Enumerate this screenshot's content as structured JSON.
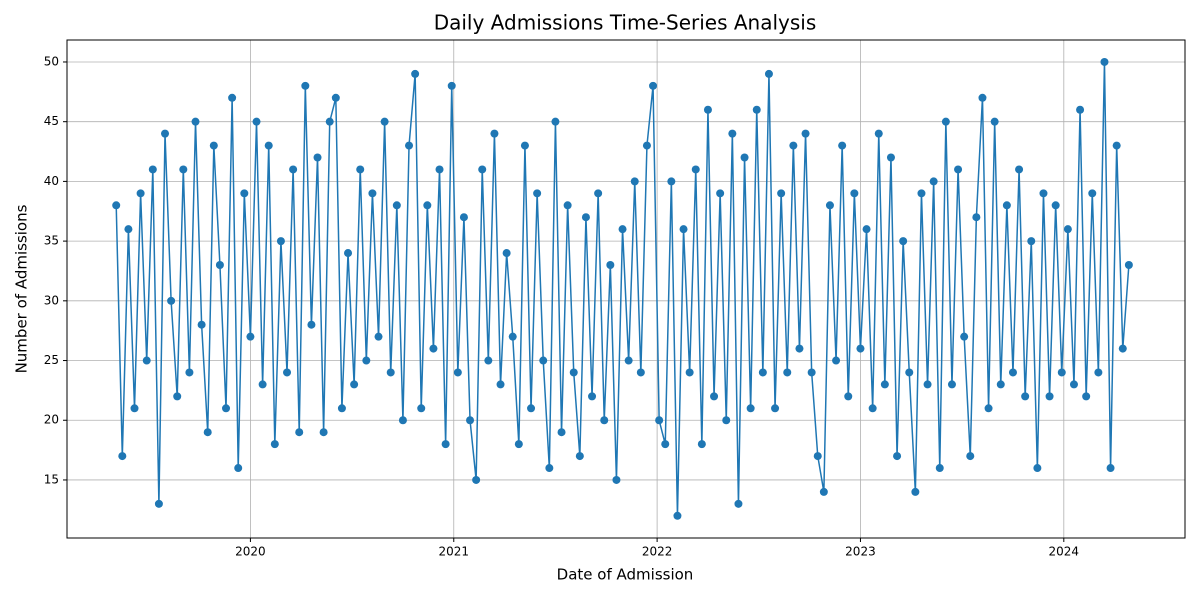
{
  "chart_data": {
    "type": "line",
    "title": "Daily Admissions Time-Series Analysis",
    "x_label": "Date of Admission",
    "y_label": "Number of Admissions",
    "x": [
      2019.34,
      2019.37,
      2019.4,
      2019.43,
      2019.46,
      2019.49,
      2019.52,
      2019.55,
      2019.58,
      2019.61,
      2019.64,
      2019.67,
      2019.7,
      2019.73,
      2019.76,
      2019.79,
      2019.82,
      2019.85,
      2019.88,
      2019.91,
      2019.94,
      2019.97,
      2020.0,
      2020.03,
      2020.06,
      2020.09,
      2020.12,
      2020.15,
      2020.18,
      2020.21,
      2020.24,
      2020.27,
      2020.3,
      2020.33,
      2020.36,
      2020.39,
      2020.42,
      2020.45,
      2020.48,
      2020.51,
      2020.54,
      2020.57,
      2020.6,
      2020.63,
      2020.66,
      2020.69,
      2020.72,
      2020.75,
      2020.78,
      2020.81,
      2020.84,
      2020.87,
      2020.9,
      2020.93,
      2020.96,
      2020.99,
      2021.02,
      2021.05,
      2021.08,
      2021.11,
      2021.14,
      2021.17,
      2021.2,
      2021.23,
      2021.26,
      2021.29,
      2021.32,
      2021.35,
      2021.38,
      2021.41,
      2021.44,
      2021.47,
      2021.5,
      2021.53,
      2021.56,
      2021.59,
      2021.62,
      2021.65,
      2021.68,
      2021.71,
      2021.74,
      2021.77,
      2021.8,
      2021.83,
      2021.86,
      2021.89,
      2021.92,
      2021.95,
      2021.98,
      2022.01,
      2022.04,
      2022.07,
      2022.1,
      2022.13,
      2022.16,
      2022.19,
      2022.22,
      2022.25,
      2022.28,
      2022.31,
      2022.34,
      2022.37,
      2022.4,
      2022.43,
      2022.46,
      2022.49,
      2022.52,
      2022.55,
      2022.58,
      2022.61,
      2022.64,
      2022.67,
      2022.7,
      2022.73,
      2022.76,
      2022.79,
      2022.82,
      2022.85,
      2022.88,
      2022.91,
      2022.94,
      2022.97,
      2023.0,
      2023.03,
      2023.06,
      2023.09,
      2023.12,
      2023.15,
      2023.18,
      2023.21,
      2023.24,
      2023.27,
      2023.3,
      2023.33,
      2023.36,
      2023.39,
      2023.42,
      2023.45,
      2023.48,
      2023.51,
      2023.54,
      2023.57,
      2023.6,
      2023.63,
      2023.66,
      2023.69,
      2023.72,
      2023.75,
      2023.78,
      2023.81,
      2023.84,
      2023.87,
      2023.9,
      2023.93,
      2023.96,
      2023.99,
      2024.02,
      2024.05,
      2024.08,
      2024.11,
      2024.14,
      2024.17,
      2024.2,
      2024.23,
      2024.26,
      2024.29,
      2024.32
    ],
    "series": [
      {
        "name": "Admissions",
        "color": "#1f77b4",
        "values": [
          38,
          17,
          36,
          21,
          39,
          25,
          41,
          13,
          44,
          30,
          22,
          41,
          24,
          45,
          28,
          19,
          43,
          33,
          21,
          47,
          16,
          39,
          27,
          45,
          23,
          43,
          18,
          35,
          24,
          41,
          19,
          48,
          28,
          42,
          19,
          45,
          47,
          21,
          34,
          23,
          41,
          25,
          39,
          27,
          45,
          24,
          38,
          20,
          43,
          49,
          21,
          38,
          26,
          41,
          18,
          48,
          24,
          37,
          20,
          15,
          41,
          25,
          44,
          23,
          34,
          27,
          18,
          43,
          21,
          39,
          25,
          16,
          45,
          19,
          38,
          24,
          17,
          37,
          22,
          39,
          20,
          33,
          15,
          36,
          25,
          40,
          24,
          43,
          48,
          20,
          18,
          40,
          12,
          36,
          24,
          41,
          18,
          46,
          22,
          39,
          20,
          44,
          13,
          42,
          21,
          46,
          24,
          49,
          21,
          39,
          24,
          43,
          26,
          44,
          24,
          17,
          14,
          38,
          25,
          43,
          22,
          39,
          26,
          36,
          21,
          44,
          23,
          42,
          17,
          35,
          24,
          14,
          39,
          23,
          40,
          16,
          45,
          23,
          41,
          27,
          17,
          37,
          47,
          21,
          45,
          23,
          38,
          24,
          41,
          22,
          35,
          16,
          39,
          22,
          38,
          24,
          36,
          23,
          46,
          22,
          39,
          24,
          50,
          16,
          43,
          26,
          33
        ]
      }
    ],
    "xlim": [
      2019.098,
      2024.596
    ],
    "xticks": [
      2020,
      2021,
      2022,
      2023,
      2024
    ],
    "ylim": [
      10.14,
      51.84
    ],
    "yticks": [
      15,
      20,
      25,
      30,
      35,
      40,
      45,
      50
    ],
    "grid": true,
    "markers": true
  }
}
